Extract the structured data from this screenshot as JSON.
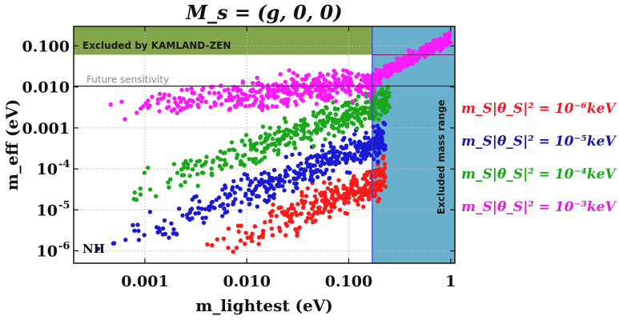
{
  "chart_data": {
    "type": "scatter",
    "title": "M_s = (g, 0, 0)",
    "xlabel": "m_lightest (eV)",
    "ylabel": "m_eff (eV)",
    "xscale": "log",
    "yscale": "log",
    "xlim": [
      0.0002,
      1.1
    ],
    "ylim": [
      5e-07,
      0.3
    ],
    "x_ticks": [
      {
        "value": 0.001,
        "label": "0.001"
      },
      {
        "value": 0.01,
        "label": "0.010"
      },
      {
        "value": 0.1,
        "label": "0.100"
      },
      {
        "value": 1,
        "label": "1"
      }
    ],
    "y_ticks": [
      {
        "value": 1e-06,
        "label": "10",
        "exp": "-6"
      },
      {
        "value": 1e-05,
        "label": "10",
        "exp": "-5"
      },
      {
        "value": 0.0001,
        "label": "10",
        "exp": "-4"
      },
      {
        "value": 0.001,
        "label": "0.001",
        "exp": ""
      },
      {
        "value": 0.01,
        "label": "0.010",
        "exp": ""
      },
      {
        "value": 0.1,
        "label": "0.100",
        "exp": ""
      }
    ],
    "regions": {
      "kamland": {
        "label": "Excluded by KAMLAND-ZEN",
        "y_min": 0.061,
        "color": "#83a64a"
      },
      "mass_range": {
        "label": "Excluded mass range",
        "x_min": 0.17,
        "color": "#68b0cc"
      }
    },
    "lines": {
      "future": {
        "label": "Future sensitivity",
        "y": 0.0105
      },
      "vertical": {
        "x": 0.17
      }
    },
    "annotation": "NH",
    "series": [
      {
        "name": "m_S|θ_S|^2 = 10^-6 keV",
        "color": "#ff1a1a",
        "x_range": [
          0.0028,
          0.23
        ],
        "band_center": -5.2,
        "band_slope": 1.05,
        "spread": 0.45,
        "count": 300
      },
      {
        "name": "m_S|θ_S|^2 = 10^-5 keV",
        "color": "#1a1ad6",
        "x_range": [
          0.0003,
          0.23
        ],
        "band_center": -4.2,
        "band_slope": 1.0,
        "spread": 0.4,
        "count": 420
      },
      {
        "name": "m_S|θ_S|^2 = 10^-4 keV",
        "color": "#1aa81a",
        "x_range": [
          0.0005,
          0.25
        ],
        "band_center": -3.2,
        "band_slope": 0.9,
        "spread": 0.4,
        "count": 380
      },
      {
        "name": "m_S|θ_S|^2 = 10^-3 keV",
        "color": "#ff1aff",
        "x_range": [
          0.0003,
          1.0
        ],
        "band_center": -2.1,
        "band_slope": 0.25,
        "spread": 0.35,
        "count": 700
      }
    ]
  },
  "legend": {
    "items": [
      {
        "text": "m_S|θ_S|² = 10⁻⁶keV",
        "color": "#e8202a"
      },
      {
        "text": "m_S|θ_S|² = 10⁻⁵keV",
        "color": "#1a1aa8"
      },
      {
        "text": "m_S|θ_S|² = 10⁻⁴keV",
        "color": "#1aa81a"
      },
      {
        "text": "m_S|θ_S|² = 10⁻³keV",
        "color": "#e020e0"
      }
    ]
  }
}
